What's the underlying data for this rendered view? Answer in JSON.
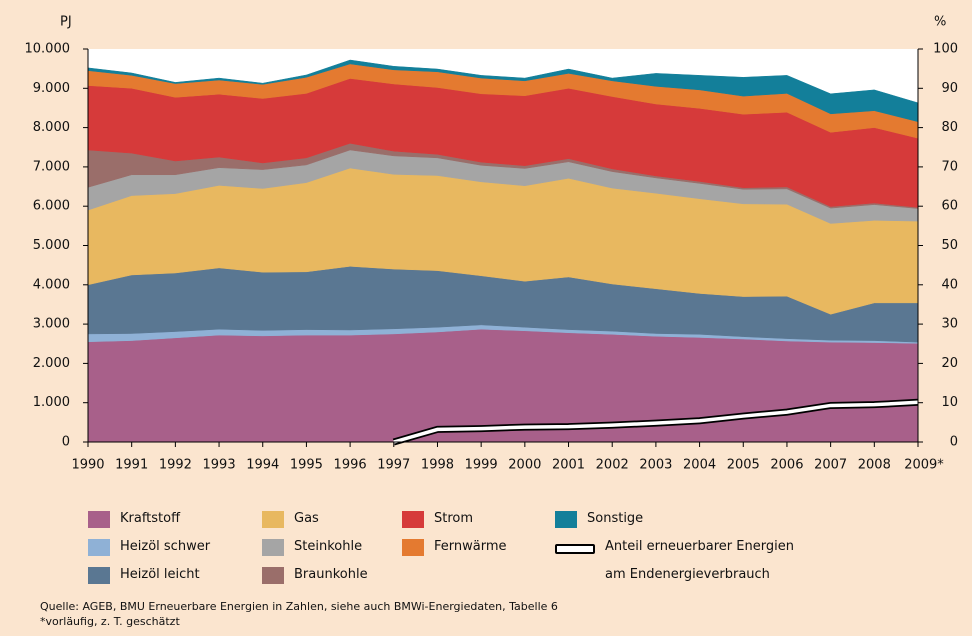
{
  "chart_data": {
    "type": "stacked_area",
    "ylabel": "PJ",
    "y2label": "%",
    "categories": [
      "1990",
      "1991",
      "1992",
      "1993",
      "1994",
      "1995",
      "1996",
      "1997",
      "1998",
      "1999",
      "2000",
      "2001",
      "2002",
      "2003",
      "2004",
      "2005",
      "2006",
      "2007",
      "2008",
      "2009*"
    ],
    "ylim": [
      0,
      10000
    ],
    "yticks": [
      0,
      {
        "value": 1000,
        "label": "1.000"
      },
      {
        "value": 2000,
        "label": "2.000"
      },
      {
        "value": 3000,
        "label": "3.000"
      },
      {
        "value": 4000,
        "label": "4.000"
      },
      {
        "value": 5000,
        "label": "5.000"
      },
      {
        "value": 6000,
        "label": "6.000"
      },
      {
        "value": 7000,
        "label": "7.000"
      },
      {
        "value": 8000,
        "label": "8.000"
      },
      {
        "value": 9000,
        "label": "9.000"
      },
      {
        "value": 10000,
        "label": "10.000"
      }
    ],
    "y2lim": [
      0,
      100
    ],
    "y2ticks": [
      0,
      10,
      20,
      30,
      40,
      50,
      60,
      70,
      80,
      90,
      100
    ],
    "series": [
      {
        "name": "Kraftstoff",
        "color": "#a8608a",
        "values": [
          2550,
          2580,
          2650,
          2720,
          2700,
          2720,
          2720,
          2750,
          2800,
          2870,
          2830,
          2780,
          2740,
          2690,
          2660,
          2620,
          2570,
          2540,
          2530,
          2510
        ]
      },
      {
        "name": "Heizöl schwer",
        "color": "#8fb1d6",
        "values": [
          200,
          180,
          160,
          150,
          140,
          140,
          130,
          130,
          120,
          110,
          90,
          80,
          80,
          70,
          80,
          60,
          60,
          50,
          50,
          30
        ]
      },
      {
        "name": "Heizöl leicht",
        "color": "#5a7792",
        "values": [
          1250,
          1490,
          1490,
          1560,
          1480,
          1470,
          1620,
          1520,
          1440,
          1250,
          1170,
          1340,
          1200,
          1140,
          1040,
          1020,
          1080,
          660,
          960,
          1000
        ]
      },
      {
        "name": "Gas",
        "color": "#e8b860",
        "values": [
          1900,
          2020,
          2020,
          2100,
          2130,
          2270,
          2500,
          2410,
          2420,
          2390,
          2430,
          2510,
          2440,
          2430,
          2410,
          2360,
          2340,
          2310,
          2100,
          2080
        ]
      },
      {
        "name": "Steinkohle",
        "color": "#a5a5a5",
        "values": [
          580,
          530,
          480,
          450,
          480,
          450,
          460,
          470,
          450,
          420,
          440,
          420,
          420,
          390,
          390,
          370,
          390,
          390,
          400,
          320
        ]
      },
      {
        "name": "Braunkohle",
        "color": "#9a6e6a",
        "values": [
          950,
          550,
          350,
          270,
          170,
          180,
          170,
          120,
          90,
          80,
          70,
          80,
          70,
          50,
          50,
          40,
          50,
          40,
          40,
          30
        ]
      },
      {
        "name": "Strom",
        "color": "#d63a3a",
        "values": [
          1640,
          1650,
          1620,
          1600,
          1640,
          1640,
          1650,
          1710,
          1700,
          1740,
          1780,
          1790,
          1840,
          1830,
          1860,
          1870,
          1900,
          1890,
          1920,
          1760
        ]
      },
      {
        "name": "Fernwärme",
        "color": "#e47a30",
        "values": [
          380,
          330,
          350,
          360,
          360,
          410,
          370,
          360,
          400,
          400,
          380,
          380,
          400,
          450,
          470,
          460,
          480,
          470,
          430,
          420
        ]
      },
      {
        "name": "Sonstige",
        "color": "#137f9a",
        "values": [
          70,
          60,
          30,
          50,
          30,
          60,
          100,
          90,
          70,
          70,
          70,
          110,
          70,
          330,
          370,
          480,
          460,
          510,
          530,
          480
        ]
      },
      {
        "name": "Anteil erneuerbarer Energien am Endenergieverbrauch",
        "type": "line",
        "axis": "y2",
        "color": "#ffffff",
        "values": [
          null,
          null,
          null,
          null,
          null,
          null,
          null,
          0,
          3.2,
          3.4,
          3.8,
          3.9,
          4.3,
          4.8,
          5.4,
          6.6,
          7.6,
          9.3,
          9.5,
          10.1
        ]
      }
    ],
    "notes": [
      "Quelle: AGEB, BMU Erneuerbare Energien in Zahlen, siehe auch BMWi-Energiedaten, Tabelle 6",
      "*vorläufig, z. T. geschätzt"
    ]
  }
}
